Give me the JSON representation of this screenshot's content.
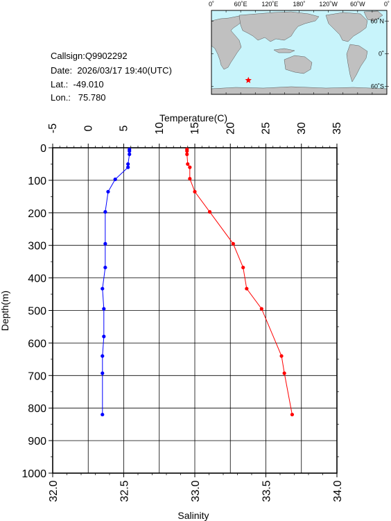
{
  "meta": {
    "callsign_label": "Callsign:",
    "callsign": "Q9902292",
    "date_label": "Date:",
    "date": "2026/03/17 19:40(UTC)",
    "lat_label": "Lat.:",
    "lat": "-49.010",
    "lon_label": "Lon.:",
    "lon": "75.780"
  },
  "map": {
    "top_labels": [
      "0˚",
      "60˚E",
      "120˚E",
      "180˚",
      "120˚W",
      "60˚W",
      "0˚"
    ],
    "right_labels": [
      "60˚N",
      "0˚",
      "60˚S"
    ],
    "station": {
      "lon": 75.78,
      "lat": -49.01
    },
    "colors": {
      "ocean": "#c8f4fb",
      "land": "#c0c0c0",
      "marker": "#ff0000"
    }
  },
  "chart_data": {
    "type": "line",
    "xlabel_top": "Temperature(C)",
    "xlabel_bottom": "Salinity",
    "ylabel": "Depth(m)",
    "temperature_ticks": [
      "-5",
      "0",
      "5",
      "10",
      "15",
      "20",
      "25",
      "30",
      "35"
    ],
    "salinity_ticks": [
      "32.0",
      "32.5",
      "33.0",
      "33.5",
      "34.0"
    ],
    "depth_ticks": [
      "0",
      "100",
      "200",
      "300",
      "400",
      "500",
      "600",
      "700",
      "800",
      "900",
      "1000"
    ],
    "xlim_temperature": [
      -5,
      35
    ],
    "xlim_salinity": [
      32.0,
      34.0
    ],
    "ylim_depth": [
      0,
      1000
    ],
    "grid": true,
    "series": [
      {
        "variable": "temperature",
        "color": "#ff0000",
        "points": [
          {
            "depth": 5,
            "value": 13.9
          },
          {
            "depth": 10,
            "value": 13.9
          },
          {
            "depth": 20,
            "value": 13.9
          },
          {
            "depth": 50,
            "value": 14.0
          },
          {
            "depth": 60,
            "value": 14.3
          },
          {
            "depth": 95,
            "value": 14.3
          },
          {
            "depth": 135,
            "value": 15.0
          },
          {
            "depth": 197,
            "value": 17.1
          },
          {
            "depth": 295,
            "value": 20.4
          },
          {
            "depth": 368,
            "value": 21.8
          },
          {
            "depth": 433,
            "value": 22.3
          },
          {
            "depth": 495,
            "value": 24.4
          },
          {
            "depth": 640,
            "value": 27.2
          },
          {
            "depth": 693,
            "value": 27.6
          },
          {
            "depth": 820,
            "value": 28.7
          }
        ]
      },
      {
        "variable": "salinity",
        "color": "#0000ff",
        "points": [
          {
            "depth": 5,
            "value": 32.54
          },
          {
            "depth": 10,
            "value": 32.54
          },
          {
            "depth": 20,
            "value": 32.54
          },
          {
            "depth": 50,
            "value": 32.53
          },
          {
            "depth": 60,
            "value": 32.53
          },
          {
            "depth": 97,
            "value": 32.44
          },
          {
            "depth": 135,
            "value": 32.39
          },
          {
            "depth": 197,
            "value": 32.37
          },
          {
            "depth": 295,
            "value": 32.37
          },
          {
            "depth": 368,
            "value": 32.37
          },
          {
            "depth": 433,
            "value": 32.35
          },
          {
            "depth": 495,
            "value": 32.36
          },
          {
            "depth": 580,
            "value": 32.36
          },
          {
            "depth": 640,
            "value": 32.35
          },
          {
            "depth": 693,
            "value": 32.35
          },
          {
            "depth": 820,
            "value": 32.35
          }
        ]
      }
    ]
  }
}
